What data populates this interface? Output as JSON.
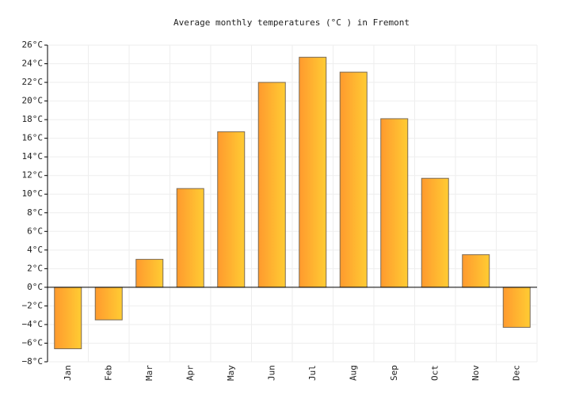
{
  "chart_data": {
    "type": "bar",
    "title": "Average monthly temperatures (°C ) in Fremont",
    "categories": [
      "Jan",
      "Feb",
      "Mar",
      "Apr",
      "May",
      "Jun",
      "Jul",
      "Aug",
      "Sep",
      "Oct",
      "Nov",
      "Dec"
    ],
    "values": [
      -6.6,
      -3.5,
      3.0,
      10.6,
      16.7,
      22.0,
      24.7,
      23.1,
      18.1,
      11.7,
      3.5,
      -4.3
    ],
    "color": [
      "#ff9a2e",
      "#ffcc33"
    ],
    "ylim": [
      -8,
      26
    ],
    "yticks": [
      {
        "value": -8,
        "label": "−8°C"
      },
      {
        "value": -6,
        "label": "−6°C"
      },
      {
        "value": -4,
        "label": "−4°C"
      },
      {
        "value": -2,
        "label": "−2°C"
      },
      {
        "value": 0,
        "label": "0°C"
      },
      {
        "value": 2,
        "label": "2°C"
      },
      {
        "value": 4,
        "label": "4°C"
      },
      {
        "value": 6,
        "label": "6°C"
      },
      {
        "value": 8,
        "label": "8°C"
      },
      {
        "value": 10,
        "label": "10°C"
      },
      {
        "value": 12,
        "label": "12°C"
      },
      {
        "value": 14,
        "label": "14°C"
      },
      {
        "value": 16,
        "label": "16°C"
      },
      {
        "value": 18,
        "label": "18°C"
      },
      {
        "value": 20,
        "label": "20°C"
      },
      {
        "value": 22,
        "label": "22°C"
      },
      {
        "value": 24,
        "label": "24°C"
      },
      {
        "value": 26,
        "label": "26°C"
      }
    ],
    "grid": true
  }
}
